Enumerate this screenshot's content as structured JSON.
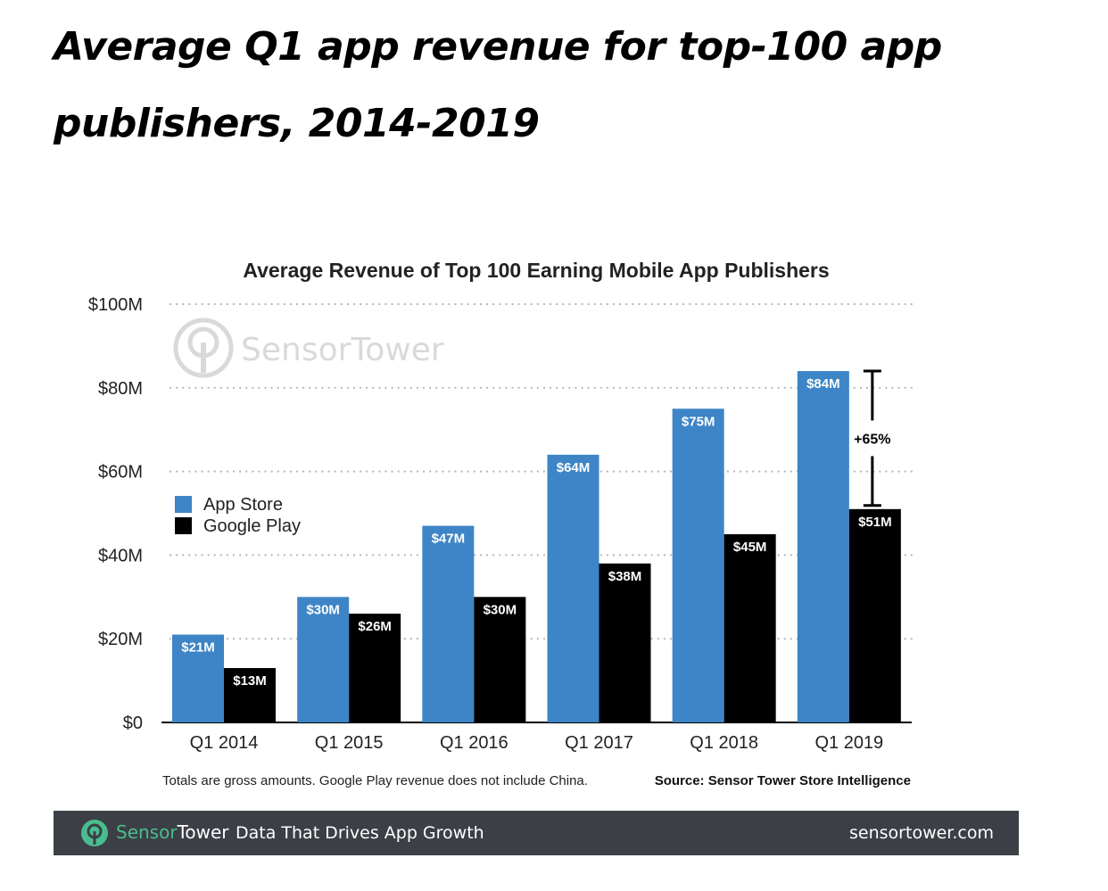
{
  "headline": "Average Q1 app revenue for top-100 app publishers, 2014-2019",
  "chart_data": {
    "type": "bar",
    "title": "Average Revenue of Top 100 Earning Mobile App Publishers",
    "xlabel": "",
    "ylabel": "",
    "categories": [
      "Q1 2014",
      "Q1 2015",
      "Q1 2016",
      "Q1 2017",
      "Q1 2018",
      "Q1 2019"
    ],
    "series": [
      {
        "name": "App Store",
        "color": "#3d85c6",
        "values": [
          21,
          30,
          47,
          64,
          75,
          84
        ],
        "labels": [
          "$21M",
          "$30M",
          "$47M",
          "$64M",
          "$75M",
          "$84M"
        ]
      },
      {
        "name": "Google Play",
        "color": "#000000",
        "values": [
          13,
          26,
          30,
          38,
          45,
          51
        ],
        "labels": [
          "$13M",
          "$26M",
          "$30M",
          "$38M",
          "$45M",
          "$51M"
        ]
      }
    ],
    "ylim": [
      0,
      100
    ],
    "yticks": [
      0,
      20,
      40,
      60,
      80,
      100
    ],
    "ytick_labels": [
      "$0",
      "$20M",
      "$40M",
      "$60M",
      "$80M",
      "$100M"
    ],
    "grid": "dotted horizontal",
    "legend_position": "left",
    "annotation": {
      "text": "+65%",
      "category": "Q1 2019",
      "from": 51,
      "to": 84
    },
    "watermark": "SensorTower",
    "note": "Totals are gross amounts. Google Play revenue does not include China.",
    "source": "Source: Sensor Tower Store Intelligence"
  },
  "footer": {
    "brand_part1": "Sensor",
    "brand_part2": "Tower",
    "tagline": "Data That Drives App Growth",
    "url": "sensortower.com"
  }
}
